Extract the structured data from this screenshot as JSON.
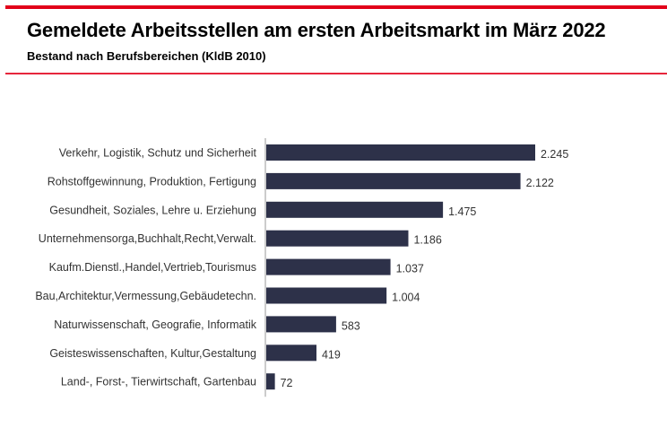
{
  "header": {
    "title": "Gemeldete Arbeitsstellen am ersten Arbeitsmarkt im März 2022",
    "subtitle": "Bestand nach Berufsbereichen (KldB 2010)"
  },
  "colors": {
    "accent": "#e2001a",
    "bar": "#2d3149",
    "axis": "#999999",
    "text": "#333333"
  },
  "chart_data": {
    "type": "bar",
    "orientation": "horizontal",
    "title": "Gemeldete Arbeitsstellen am ersten Arbeitsmarkt im März 2022",
    "subtitle": "Bestand nach Berufsbereichen (KldB 2010)",
    "xlabel": "",
    "ylabel": "",
    "categories": [
      "Verkehr, Logistik, Schutz und Sicherheit",
      "Rohstoffgewinnung, Produktion, Fertigung",
      "Gesundheit, Soziales, Lehre u. Erziehung",
      "Unternehmensorga,Buchhalt,Recht,Verwalt.",
      "Kaufm.Dienstl.,Handel,Vertrieb,Tourismus",
      "Bau,Architektur,Vermessung,Gebäudetechn.",
      "Naturwissenschaft, Geografie, Informatik",
      "Geisteswissenschaften, Kultur,Gestaltung",
      "Land-, Forst-, Tierwirtschaft, Gartenbau"
    ],
    "values": [
      2245,
      2122,
      1475,
      1186,
      1037,
      1004,
      583,
      419,
      72
    ],
    "value_labels": [
      "2.245",
      "2.122",
      "1.475",
      "1.186",
      "1.037",
      "1.004",
      "583",
      "419",
      "72"
    ],
    "xlim": [
      0,
      2245
    ],
    "grid": false,
    "legend": "none"
  }
}
